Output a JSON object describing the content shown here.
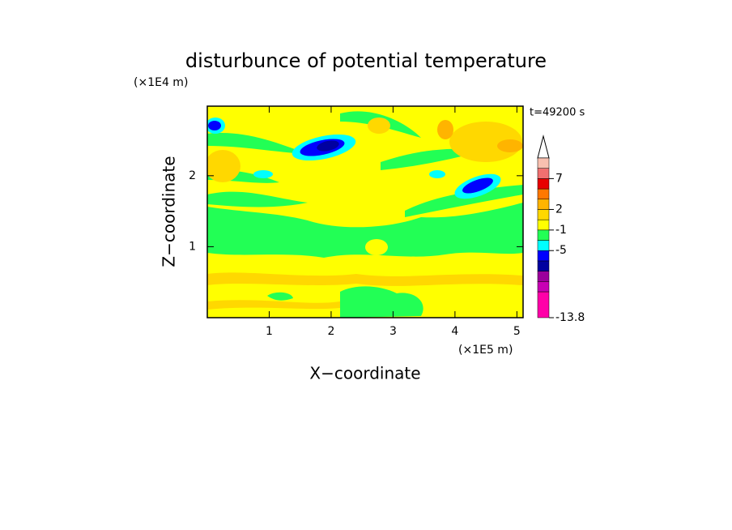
{
  "chart_data": {
    "type": "contour",
    "title": "disturbunce of potential temperature",
    "time_label": "t=49200 s",
    "xlabel": "X−coordinate",
    "ylabel": "Z−coordinate",
    "x_unit": "(×1E5 m)",
    "y_unit": "(×1E4 m)",
    "xlim": [
      0,
      5.1
    ],
    "ylim": [
      0,
      2.98
    ],
    "xticks": [
      1,
      2,
      3,
      4,
      5
    ],
    "yticks": [
      1,
      2
    ],
    "colorbar": {
      "colors": [
        "#ff00a8",
        "#c800b4",
        "#9c009c",
        "#0000a0",
        "#0000ff",
        "#00ffff",
        "#22ff55",
        "#ffff00",
        "#ffd800",
        "#ffb400",
        "#ff7800",
        "#e80000",
        "#f07070",
        "#f8c0b0"
      ],
      "ticks": [
        -13.8,
        -5,
        -1,
        2,
        7
      ]
    }
  }
}
